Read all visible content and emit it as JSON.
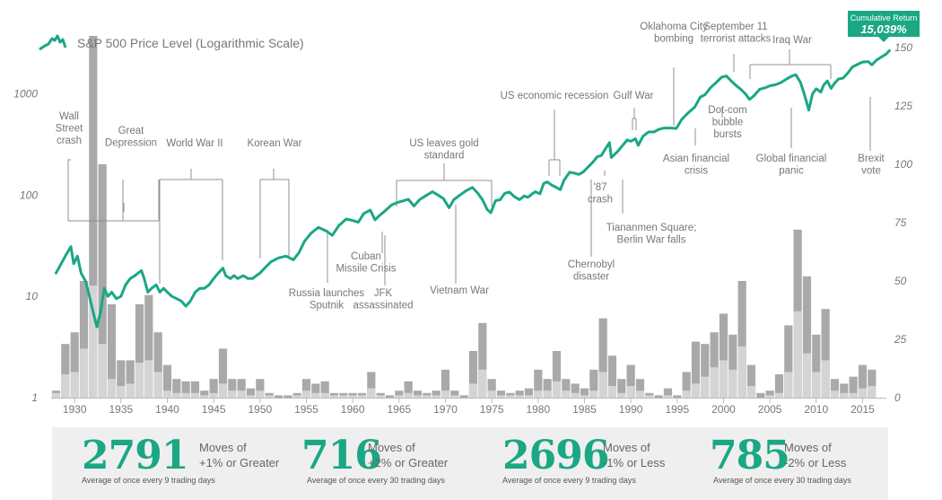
{
  "chart_data": {
    "type": "bar+line",
    "title": "S&P 500 Price Level (Logarithmic Scale)",
    "x_ticks": [
      "1930",
      "1935",
      "1940",
      "1945",
      "1950",
      "1955",
      "1960",
      "1965",
      "1970",
      "1975",
      "1980",
      "1985",
      "1990",
      "1995",
      "2000",
      "2005",
      "2010",
      "2015"
    ],
    "left_axis": {
      "scale": "log",
      "ticks": [
        "1",
        "10",
        "100",
        "1000"
      ],
      "range": [
        1,
        2000
      ]
    },
    "right_axis": {
      "ticks": [
        "0",
        "25",
        "50",
        "75",
        "100",
        "125",
        "150"
      ],
      "range": [
        0,
        155
      ]
    },
    "bar_series": [
      {
        "name": "Moves of +/-1%",
        "color": "#a9a9a9"
      },
      {
        "name": "Moves of +/-2%",
        "color": "#d4d4d4"
      }
    ],
    "bars": [
      [
        1928,
        3,
        2
      ],
      [
        1929,
        23,
        10
      ],
      [
        1930,
        28,
        11
      ],
      [
        1931,
        50,
        21
      ],
      [
        1932,
        155,
        48
      ],
      [
        1933,
        100,
        23
      ],
      [
        1934,
        40,
        8
      ],
      [
        1935,
        16,
        5
      ],
      [
        1936,
        16,
        6
      ],
      [
        1937,
        40,
        15
      ],
      [
        1938,
        44,
        16
      ],
      [
        1939,
        28,
        11
      ],
      [
        1940,
        14,
        3
      ],
      [
        1941,
        8,
        2
      ],
      [
        1942,
        7,
        2
      ],
      [
        1943,
        7,
        2
      ],
      [
        1944,
        3,
        1
      ],
      [
        1945,
        8,
        2
      ],
      [
        1946,
        21,
        6
      ],
      [
        1947,
        8,
        3
      ],
      [
        1948,
        8,
        3
      ],
      [
        1949,
        4,
        1
      ],
      [
        1950,
        8,
        3
      ],
      [
        1951,
        2,
        1
      ],
      [
        1952,
        1,
        0
      ],
      [
        1953,
        1,
        0
      ],
      [
        1954,
        2,
        1
      ],
      [
        1955,
        8,
        3
      ],
      [
        1956,
        6,
        2
      ],
      [
        1957,
        7,
        2
      ],
      [
        1958,
        2,
        1
      ],
      [
        1959,
        2,
        1
      ],
      [
        1960,
        2,
        1
      ],
      [
        1961,
        2,
        1
      ],
      [
        1962,
        11,
        4
      ],
      [
        1963,
        2,
        1
      ],
      [
        1964,
        1,
        0
      ],
      [
        1965,
        3,
        1
      ],
      [
        1966,
        7,
        2
      ],
      [
        1967,
        3,
        1
      ],
      [
        1968,
        2,
        1
      ],
      [
        1969,
        3,
        1
      ],
      [
        1970,
        12,
        3
      ],
      [
        1971,
        3,
        1
      ],
      [
        1972,
        1,
        0
      ],
      [
        1973,
        20,
        6
      ],
      [
        1974,
        32,
        12
      ],
      [
        1975,
        8,
        3
      ],
      [
        1976,
        3,
        1
      ],
      [
        1977,
        2,
        1
      ],
      [
        1978,
        3,
        1
      ],
      [
        1979,
        4,
        1
      ],
      [
        1980,
        12,
        3
      ],
      [
        1981,
        8,
        3
      ],
      [
        1982,
        20,
        7
      ],
      [
        1983,
        8,
        3
      ],
      [
        1984,
        6,
        2
      ],
      [
        1985,
        4,
        1
      ],
      [
        1986,
        12,
        3
      ],
      [
        1987,
        34,
        11
      ],
      [
        1988,
        18,
        5
      ],
      [
        1989,
        8,
        2
      ],
      [
        1990,
        14,
        5
      ],
      [
        1991,
        8,
        3
      ],
      [
        1992,
        2,
        1
      ],
      [
        1993,
        1,
        0
      ],
      [
        1994,
        4,
        1
      ],
      [
        1995,
        1,
        0
      ],
      [
        1996,
        11,
        3
      ],
      [
        1997,
        24,
        6
      ],
      [
        1998,
        23,
        9
      ],
      [
        1999,
        28,
        13
      ],
      [
        2000,
        36,
        16
      ],
      [
        2001,
        27,
        12
      ],
      [
        2002,
        50,
        22
      ],
      [
        2003,
        14,
        5
      ],
      [
        2004,
        2,
        0
      ],
      [
        2005,
        3,
        1
      ],
      [
        2006,
        10,
        2
      ],
      [
        2007,
        31,
        11
      ],
      [
        2008,
        72,
        37
      ],
      [
        2009,
        52,
        19
      ],
      [
        2010,
        27,
        11
      ],
      [
        2011,
        38,
        16
      ],
      [
        2012,
        8,
        3
      ],
      [
        2013,
        6,
        2
      ],
      [
        2014,
        9,
        2
      ],
      [
        2015,
        14,
        4
      ],
      [
        2016,
        12,
        5
      ]
    ],
    "price_line": [
      [
        1928,
        17
      ],
      [
        1929,
        25
      ],
      [
        1929.6,
        31
      ],
      [
        1929.9,
        21
      ],
      [
        1930.3,
        25
      ],
      [
        1930.7,
        17
      ],
      [
        1931.2,
        14
      ],
      [
        1931.6,
        10
      ],
      [
        1932.0,
        7
      ],
      [
        1932.4,
        5
      ],
      [
        1932.8,
        7
      ],
      [
        1933.2,
        12
      ],
      [
        1933.6,
        10
      ],
      [
        1934.0,
        11
      ],
      [
        1934.5,
        9.5
      ],
      [
        1935.0,
        10
      ],
      [
        1935.5,
        13
      ],
      [
        1936.0,
        15
      ],
      [
        1936.5,
        16
      ],
      [
        1937.2,
        18
      ],
      [
        1937.5,
        15
      ],
      [
        1937.9,
        11
      ],
      [
        1938.3,
        12
      ],
      [
        1938.8,
        13
      ],
      [
        1939.2,
        11
      ],
      [
        1939.6,
        12
      ],
      [
        1940.0,
        11
      ],
      [
        1940.5,
        10
      ],
      [
        1941.0,
        9.5
      ],
      [
        1941.5,
        9
      ],
      [
        1942.0,
        8
      ],
      [
        1942.5,
        9
      ],
      [
        1943.0,
        11
      ],
      [
        1943.5,
        12
      ],
      [
        1944.0,
        12
      ],
      [
        1944.5,
        13
      ],
      [
        1945.0,
        15
      ],
      [
        1945.5,
        17
      ],
      [
        1946.0,
        19
      ],
      [
        1946.3,
        16
      ],
      [
        1946.8,
        15
      ],
      [
        1947.2,
        16
      ],
      [
        1947.6,
        15
      ],
      [
        1948.2,
        16
      ],
      [
        1948.7,
        15
      ],
      [
        1949.2,
        15
      ],
      [
        1949.6,
        16
      ],
      [
        1950.0,
        17
      ],
      [
        1950.5,
        19
      ],
      [
        1951.2,
        22
      ],
      [
        1952.0,
        24
      ],
      [
        1952.8,
        25
      ],
      [
        1953.6,
        23
      ],
      [
        1954.2,
        27
      ],
      [
        1954.8,
        35
      ],
      [
        1955.5,
        42
      ],
      [
        1956.3,
        48
      ],
      [
        1957.2,
        44
      ],
      [
        1957.8,
        40
      ],
      [
        1958.5,
        50
      ],
      [
        1959.3,
        58
      ],
      [
        1960.0,
        56
      ],
      [
        1960.6,
        54
      ],
      [
        1961.2,
        66
      ],
      [
        1961.9,
        71
      ],
      [
        1962.4,
        57
      ],
      [
        1962.9,
        63
      ],
      [
        1963.5,
        70
      ],
      [
        1964.2,
        80
      ],
      [
        1964.9,
        85
      ],
      [
        1965.5,
        88
      ],
      [
        1966.0,
        91
      ],
      [
        1966.6,
        78
      ],
      [
        1967.2,
        90
      ],
      [
        1968.0,
        100
      ],
      [
        1968.6,
        108
      ],
      [
        1969.2,
        100
      ],
      [
        1969.8,
        92
      ],
      [
        1970.4,
        75
      ],
      [
        1970.9,
        90
      ],
      [
        1971.5,
        99
      ],
      [
        1972.2,
        110
      ],
      [
        1972.9,
        119
      ],
      [
        1973.5,
        104
      ],
      [
        1974.0,
        90
      ],
      [
        1974.5,
        72
      ],
      [
        1974.9,
        67
      ],
      [
        1975.4,
        88
      ],
      [
        1975.9,
        90
      ],
      [
        1976.4,
        104
      ],
      [
        1976.9,
        107
      ],
      [
        1977.4,
        97
      ],
      [
        1978.0,
        90
      ],
      [
        1978.5,
        98
      ],
      [
        1978.9,
        95
      ],
      [
        1979.3,
        102
      ],
      [
        1979.7,
        108
      ],
      [
        1980.2,
        103
      ],
      [
        1980.6,
        130
      ],
      [
        1981.0,
        135
      ],
      [
        1981.5,
        125
      ],
      [
        1981.9,
        120
      ],
      [
        1982.4,
        113
      ],
      [
        1982.8,
        140
      ],
      [
        1983.4,
        168
      ],
      [
        1983.9,
        165
      ],
      [
        1984.4,
        160
      ],
      [
        1984.9,
        170
      ],
      [
        1985.4,
        190
      ],
      [
        1985.9,
        211
      ],
      [
        1986.4,
        240
      ],
      [
        1986.8,
        245
      ],
      [
        1987.4,
        300
      ],
      [
        1987.7,
        330
      ],
      [
        1987.9,
        235
      ],
      [
        1988.5,
        265
      ],
      [
        1989.0,
        300
      ],
      [
        1989.6,
        350
      ],
      [
        1990.0,
        340
      ],
      [
        1990.5,
        360
      ],
      [
        1990.8,
        310
      ],
      [
        1991.3,
        380
      ],
      [
        1991.9,
        420
      ],
      [
        1992.5,
        420
      ],
      [
        1993.0,
        445
      ],
      [
        1993.6,
        460
      ],
      [
        1994.3,
        460
      ],
      [
        1994.9,
        455
      ],
      [
        1995.5,
        560
      ],
      [
        1996.2,
        650
      ],
      [
        1996.9,
        740
      ],
      [
        1997.5,
        930
      ],
      [
        1998.0,
        980
      ],
      [
        1998.6,
        1150
      ],
      [
        1999.2,
        1290
      ],
      [
        1999.8,
        1460
      ],
      [
        2000.3,
        1500
      ],
      [
        2000.9,
        1320
      ],
      [
        2001.4,
        1200
      ],
      [
        2001.9,
        1100
      ],
      [
        2002.4,
        990
      ],
      [
        2002.8,
        880
      ],
      [
        2003.3,
        960
      ],
      [
        2003.9,
        1110
      ],
      [
        2004.5,
        1150
      ],
      [
        2005.0,
        1200
      ],
      [
        2005.6,
        1230
      ],
      [
        2006.2,
        1290
      ],
      [
        2006.8,
        1400
      ],
      [
        2007.4,
        1500
      ],
      [
        2007.8,
        1540
      ],
      [
        2008.3,
        1300
      ],
      [
        2008.7,
        1000
      ],
      [
        2009.0,
        800
      ],
      [
        2009.2,
        690
      ],
      [
        2009.6,
        1000
      ],
      [
        2010.0,
        1120
      ],
      [
        2010.5,
        1040
      ],
      [
        2010.8,
        1220
      ],
      [
        2011.2,
        1340
      ],
      [
        2011.6,
        1130
      ],
      [
        2012.0,
        1280
      ],
      [
        2012.4,
        1400
      ],
      [
        2012.9,
        1430
      ],
      [
        2013.4,
        1600
      ],
      [
        2013.9,
        1840
      ],
      [
        2014.5,
        1960
      ],
      [
        2015.0,
        2060
      ],
      [
        2015.6,
        2080
      ],
      [
        2016.0,
        1930
      ],
      [
        2016.5,
        2150
      ],
      [
        2017.0,
        2300
      ],
      [
        2017.5,
        2450
      ],
      [
        2017.9,
        2670
      ]
    ],
    "annotations": [
      {
        "lines": [
          "Wall",
          "Street",
          "crash"
        ],
        "year": 1929
      },
      {
        "lines": [
          "Great",
          "Depression"
        ],
        "year": 1932
      },
      {
        "lines": [
          "World War II"
        ],
        "year": 1942
      },
      {
        "lines": [
          "Korean War"
        ],
        "year": 1952
      },
      {
        "lines": [
          "Russia launches",
          "Sputnik"
        ],
        "year": 1957
      },
      {
        "lines": [
          "Cuban",
          "Missile Crisis"
        ],
        "year": 1962
      },
      {
        "lines": [
          "JFK",
          "assassinated"
        ],
        "year": 1963
      },
      {
        "lines": [
          "Vietnam War"
        ],
        "year": 1969
      },
      {
        "lines": [
          "US leaves gold",
          "standard"
        ],
        "year": 1971
      },
      {
        "lines": [
          "US economic recession"
        ],
        "year": 1981
      },
      {
        "lines": [
          "Chernobyl",
          "disaster"
        ],
        "year": 1986
      },
      {
        "lines": [
          "'87",
          "crash"
        ],
        "year": 1987
      },
      {
        "lines": [
          "Gulf War"
        ],
        "year": 1991
      },
      {
        "lines": [
          "Tiananmen Square;",
          "Berlin War falls"
        ],
        "year": 1989
      },
      {
        "lines": [
          "Oklahoma City",
          "bombing"
        ],
        "year": 1995
      },
      {
        "lines": [
          "Asian financial",
          "crisis"
        ],
        "year": 1997
      },
      {
        "lines": [
          "September 11",
          "terrorist attacks"
        ],
        "year": 2001
      },
      {
        "lines": [
          "Dot-com",
          "bubble",
          "bursts"
        ],
        "year": 2000
      },
      {
        "lines": [
          "Iraq War"
        ],
        "year": 2003
      },
      {
        "lines": [
          "Global financial",
          "panic"
        ],
        "year": 2008
      },
      {
        "lines": [
          "Brexit",
          "vote"
        ],
        "year": 2016
      }
    ],
    "badge": {
      "label": "Cumulative Return",
      "value": "15,039%"
    },
    "colors": {
      "line": "#1aa784",
      "bar_dark": "#a9a9a9",
      "bar_light": "#d4d4d4",
      "text": "#777777"
    }
  },
  "stats": [
    {
      "number": "2791",
      "line1": "Moves of",
      "line2": "+1% or Greater",
      "sub": "Average of once every 9 trading days"
    },
    {
      "number": "716",
      "line1": "Moves of",
      "line2": "+2% or Greater",
      "sub": "Average of once every 30 trading days"
    },
    {
      "number": "2696",
      "line1": "Moves of",
      "line2": "-1% or Less",
      "sub": "Average of once every 9 trading days"
    },
    {
      "number": "785",
      "line1": "Moves of",
      "line2": "-2% or Less",
      "sub": "Average of once every 30 trading days"
    }
  ]
}
